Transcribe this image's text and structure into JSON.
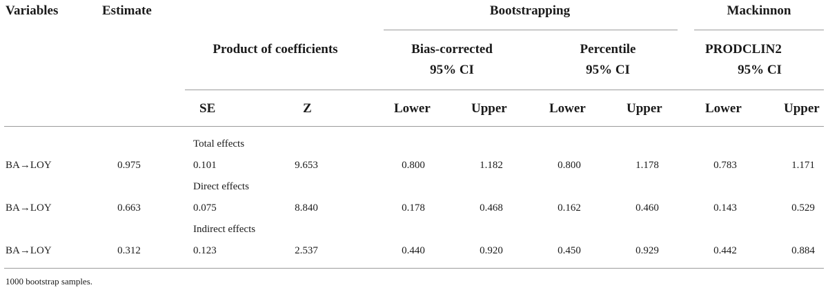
{
  "headers": {
    "variables": "Variables",
    "estimate": "Estimate",
    "bootstrapping": "Bootstrapping",
    "mackinnon": "Mackinnon",
    "product_of_coefficients": "Product of coefficients",
    "bias_corrected": "Bias-corrected",
    "bias_corrected_ci": "95% CI",
    "percentile": "Percentile",
    "percentile_ci": "95% CI",
    "prodclin2": "PRODCLIN2",
    "prodclin2_ci": "95% CI",
    "se": "SE",
    "z": "Z",
    "lower_1": "Lower",
    "upper_1": "Upper",
    "lower_2": "Lower",
    "upper_2": "Upper",
    "lower_3": "Lower",
    "upper_3": "Upper"
  },
  "sections": [
    {
      "label": "Total effects",
      "variable": "BA→LOY",
      "estimate": "0.975",
      "se": "0.101",
      "z": "9.653",
      "bc_lower": "0.800",
      "bc_upper": "1.182",
      "pc_lower": "0.800",
      "pc_upper": "1.178",
      "mk_lower": "0.783",
      "mk_upper": "1.171"
    },
    {
      "label": "Direct effects",
      "variable": "BA→LOY",
      "estimate": "0.663",
      "se": "0.075",
      "z": "8.840",
      "bc_lower": "0.178",
      "bc_upper": "0.468",
      "pc_lower": "0.162",
      "pc_upper": "0.460",
      "mk_lower": "0.143",
      "mk_upper": "0.529"
    },
    {
      "label": "Indirect effects",
      "variable": "BA→LOY",
      "estimate": "0.312",
      "se": "0.123",
      "z": "2.537",
      "bc_lower": "0.440",
      "bc_upper": "0.920",
      "pc_lower": "0.450",
      "pc_upper": "0.929",
      "mk_lower": "0.442",
      "mk_upper": "0.884"
    }
  ],
  "footnote": "1000 bootstrap samples."
}
